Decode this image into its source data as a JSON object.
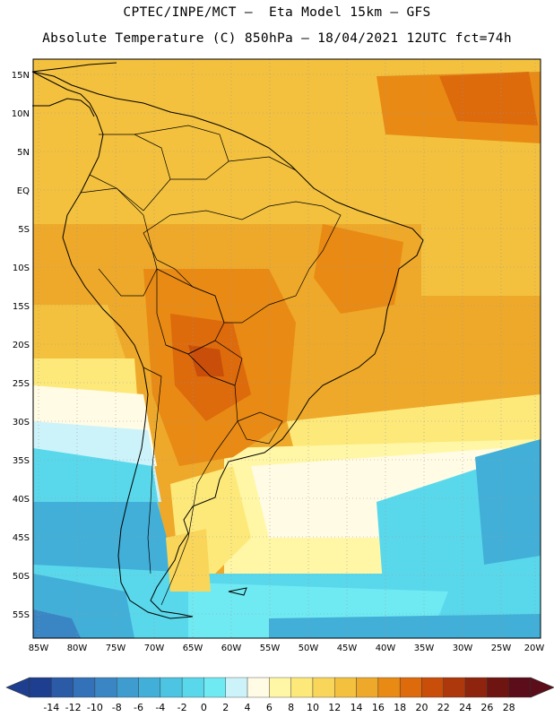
{
  "header": {
    "title_line1": "CPTEC/INPE/MCT –  Eta Model 15km – GFS",
    "title_line2": "Absolute Temperature (C) 850hPa – 18/04/2021 12UTC fct=74h"
  },
  "map": {
    "lat_ticks": [
      "15N",
      "10N",
      "5N",
      "EQ",
      "5S",
      "10S",
      "15S",
      "20S",
      "25S",
      "30S",
      "35S",
      "40S",
      "45S",
      "50S",
      "55S"
    ],
    "lon_ticks": [
      "85W",
      "80W",
      "75W",
      "70W",
      "65W",
      "60W",
      "55W",
      "50W",
      "45W",
      "40W",
      "35W",
      "30W",
      "25W",
      "20W"
    ],
    "gridlines": "dotted"
  },
  "colorbar": {
    "labels": [
      "-14",
      "-12",
      "-10",
      "-8",
      "-6",
      "-4",
      "-2",
      "0",
      "2",
      "4",
      "6",
      "8",
      "10",
      "12",
      "14",
      "16",
      "18",
      "20",
      "22",
      "24",
      "26",
      "28"
    ],
    "colors": [
      "#1e3f8f",
      "#2b5aa6",
      "#3372b8",
      "#3a86c4",
      "#3f9ccf",
      "#42afd8",
      "#4cc4e2",
      "#59d8ec",
      "#6feaf3",
      "#cdf3fa",
      "#fffbe4",
      "#fff7a6",
      "#fde97a",
      "#f9d65a",
      "#f3c13e",
      "#eea92a",
      "#e88a14",
      "#dd6a0b",
      "#c94e0a",
      "#ad380b",
      "#8e240d",
      "#6e1512",
      "#5b0d1a"
    ]
  }
}
